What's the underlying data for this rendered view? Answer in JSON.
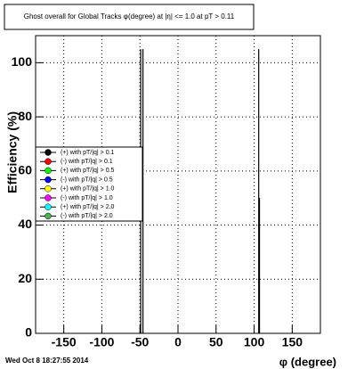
{
  "chart_data": {
    "type": "spike",
    "title": "Ghost overall for Global Tracks φ(degree) at |η| <= 1.0 at pT > 0.11",
    "x_label": "φ (degree)",
    "y_label": "Efficiency (%)",
    "footer": "Wed Oct  8 18:27:55 2014",
    "xlim": [
      -187,
      187
    ],
    "ylim": [
      0,
      110
    ],
    "xticks": [
      -150,
      -100,
      -50,
      0,
      50,
      100,
      150
    ],
    "yticks": [
      0,
      20,
      40,
      60,
      80,
      100
    ],
    "grid": true,
    "series": [
      {
        "name": "(+) with pT/|q| > 0.1",
        "color": "#000000",
        "x": [
          -49,
          106
        ],
        "values": [
          105,
          105
        ]
      },
      {
        "name": "(-) with pT/|q| > 0.1",
        "color": "#ff0000",
        "x": [
          -46,
          107
        ],
        "values": [
          105,
          50
        ]
      },
      {
        "name": "(+) with pT/|q| > 0.5",
        "color": "#00ff00",
        "x": [],
        "values": []
      },
      {
        "name": "(-) with pT/|q| > 0.5",
        "color": "#0000ff",
        "x": [],
        "values": []
      },
      {
        "name": "(+) with pT/|q| > 1.0",
        "color": "#ffff00",
        "x": [],
        "values": []
      },
      {
        "name": "(-) with pT/|q| > 1.0",
        "color": "#ff00ff",
        "x": [],
        "values": []
      },
      {
        "name": "(+) with pT/|q| > 2.0",
        "color": "#00ffff",
        "x": [],
        "values": []
      },
      {
        "name": "(-) with pT/|q| > 2.0",
        "color": "#4caf50",
        "x": [],
        "values": []
      }
    ]
  }
}
